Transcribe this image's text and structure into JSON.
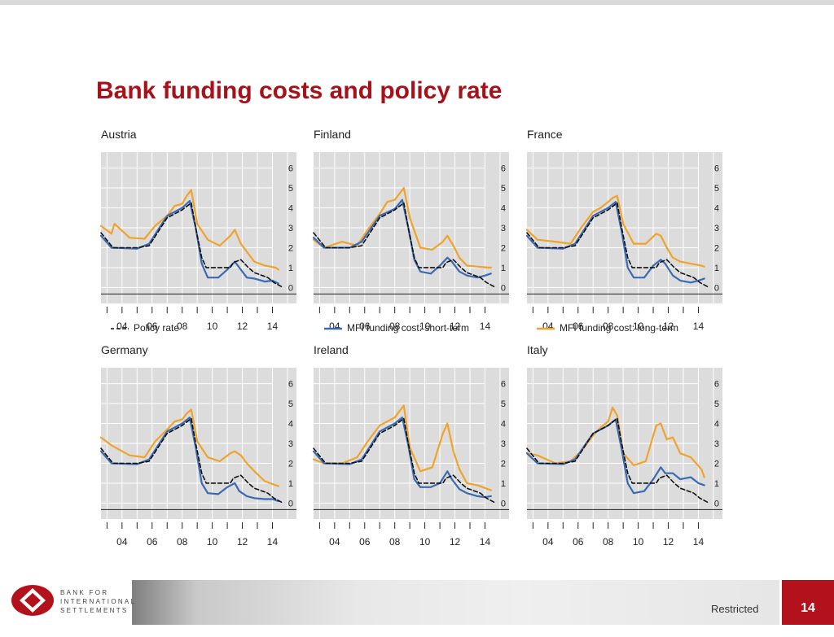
{
  "title": "Bank funding costs and policy rate",
  "footer": {
    "org_line1": "BANK FOR",
    "org_line2": "INTERNATIONAL",
    "org_line3": "SETTLEMENTS",
    "classification": "Restricted",
    "page_number": "14"
  },
  "legend": {
    "policy": "Policy rate",
    "short": "MFI funding cost: short-term",
    "long": "MFI funding cost: long-term"
  },
  "colors": {
    "policy": "#111111",
    "short": "#3a6ab4",
    "long": "#f0a32a",
    "panel_bg": "#dcdcdc",
    "title": "#a6111a"
  },
  "chart_data": [
    {
      "type": "line",
      "country": "Austria",
      "x_ticks": [
        "04",
        "06",
        "08",
        "10",
        "12",
        "14"
      ],
      "y_ticks": [
        "0",
        "1",
        "2",
        "3",
        "4",
        "5",
        "6"
      ],
      "ylim": [
        -0.8,
        6.8
      ],
      "xlim": [
        2002.6,
        2015.6
      ],
      "series": [
        {
          "name": "Policy rate",
          "x": [
            2002.6,
            2003.4,
            2005.0,
            2005.8,
            2007.0,
            2008.0,
            2008.6,
            2008.9,
            2009.3,
            2009.6,
            2010.5,
            2011.2,
            2011.4,
            2011.9,
            2012.4,
            2012.8,
            2013.7,
            2014.1,
            2014.6
          ],
          "y": [
            2.75,
            2.0,
            2.0,
            2.1,
            3.5,
            3.9,
            4.25,
            3.0,
            1.5,
            1.0,
            1.0,
            1.0,
            1.25,
            1.4,
            1.0,
            0.75,
            0.5,
            0.25,
            0.05
          ]
        },
        {
          "name": "MFI funding cost: short-term",
          "x": [
            2002.6,
            2003.3,
            2005.0,
            2005.8,
            2007.0,
            2008.0,
            2008.5,
            2008.9,
            2009.3,
            2009.7,
            2010.4,
            2011.0,
            2011.5,
            2011.8,
            2012.3,
            2012.8,
            2013.5,
            2014.0,
            2014.4
          ],
          "y": [
            2.6,
            2.0,
            1.95,
            2.2,
            3.6,
            4.0,
            4.35,
            3.0,
            1.2,
            0.5,
            0.5,
            0.9,
            1.3,
            1.0,
            0.5,
            0.45,
            0.3,
            0.35,
            0.2
          ]
        },
        {
          "name": "MFI funding cost: long-term",
          "x": [
            2002.6,
            2003.3,
            2003.5,
            2004.5,
            2005.5,
            2006.2,
            2007.0,
            2007.5,
            2008.0,
            2008.3,
            2008.6,
            2009.0,
            2009.7,
            2010.5,
            2011.2,
            2011.5,
            2011.9,
            2012.3,
            2012.8,
            2013.5,
            2014.2,
            2014.4
          ],
          "y": [
            3.1,
            2.7,
            3.2,
            2.5,
            2.45,
            3.1,
            3.6,
            4.1,
            4.2,
            4.6,
            4.9,
            3.2,
            2.4,
            2.1,
            2.6,
            2.9,
            2.2,
            1.8,
            1.3,
            1.1,
            1.0,
            0.9
          ]
        }
      ]
    },
    {
      "type": "line",
      "country": "Finland",
      "x_ticks": [
        "04",
        "06",
        "08",
        "10",
        "12",
        "14"
      ],
      "y_ticks": [
        "0",
        "1",
        "2",
        "3",
        "4",
        "5",
        "6"
      ],
      "ylim": [
        -0.8,
        6.8
      ],
      "xlim": [
        2002.6,
        2015.6
      ],
      "series": [
        {
          "name": "Policy rate",
          "x": [
            2002.6,
            2003.4,
            2005.0,
            2005.8,
            2007.0,
            2008.0,
            2008.6,
            2008.9,
            2009.3,
            2009.6,
            2010.5,
            2011.2,
            2011.4,
            2011.9,
            2012.4,
            2012.8,
            2013.7,
            2014.1,
            2014.6
          ],
          "y": [
            2.75,
            2.0,
            2.0,
            2.1,
            3.5,
            3.9,
            4.25,
            3.0,
            1.5,
            1.0,
            1.0,
            1.0,
            1.25,
            1.4,
            1.0,
            0.75,
            0.5,
            0.25,
            0.05
          ]
        },
        {
          "name": "MFI funding cost: short-term",
          "x": [
            2002.6,
            2003.3,
            2005.0,
            2005.8,
            2007.0,
            2008.0,
            2008.5,
            2008.9,
            2009.3,
            2009.7,
            2010.4,
            2011.0,
            2011.5,
            2011.8,
            2012.3,
            2012.8,
            2013.5,
            2014.0,
            2014.4
          ],
          "y": [
            2.5,
            2.0,
            2.0,
            2.3,
            3.6,
            3.95,
            4.4,
            3.0,
            1.4,
            0.8,
            0.7,
            1.1,
            1.5,
            1.3,
            0.8,
            0.6,
            0.5,
            0.6,
            0.7
          ]
        },
        {
          "name": "MFI funding cost: long-term",
          "x": [
            2002.6,
            2003.3,
            2004.5,
            2005.5,
            2006.2,
            2007.0,
            2007.5,
            2008.0,
            2008.3,
            2008.6,
            2009.0,
            2009.7,
            2010.5,
            2011.2,
            2011.5,
            2011.9,
            2012.3,
            2012.8,
            2013.5,
            2014.2,
            2014.4
          ],
          "y": [
            2.4,
            2.0,
            2.3,
            2.1,
            2.9,
            3.7,
            4.3,
            4.4,
            4.7,
            5.0,
            3.5,
            2.0,
            1.9,
            2.3,
            2.6,
            2.1,
            1.5,
            1.1,
            1.05,
            1.0,
            1.0
          ]
        }
      ]
    },
    {
      "type": "line",
      "country": "France",
      "x_ticks": [
        "04",
        "06",
        "08",
        "10",
        "12",
        "14"
      ],
      "y_ticks": [
        "0",
        "1",
        "2",
        "3",
        "4",
        "5",
        "6"
      ],
      "ylim": [
        -0.8,
        6.8
      ],
      "xlim": [
        2002.6,
        2015.6
      ],
      "series": [
        {
          "name": "Policy rate",
          "x": [
            2002.6,
            2003.4,
            2005.0,
            2005.8,
            2007.0,
            2008.0,
            2008.6,
            2008.9,
            2009.3,
            2009.6,
            2010.5,
            2011.2,
            2011.4,
            2011.9,
            2012.4,
            2012.8,
            2013.7,
            2014.1,
            2014.6
          ],
          "y": [
            2.75,
            2.0,
            2.0,
            2.1,
            3.5,
            3.9,
            4.25,
            3.0,
            1.5,
            1.0,
            1.0,
            1.0,
            1.25,
            1.4,
            1.0,
            0.75,
            0.5,
            0.25,
            0.05
          ]
        },
        {
          "name": "MFI funding cost: short-term",
          "x": [
            2002.6,
            2003.3,
            2005.0,
            2005.8,
            2007.0,
            2008.0,
            2008.5,
            2008.9,
            2009.3,
            2009.7,
            2010.4,
            2011.0,
            2011.5,
            2011.8,
            2012.3,
            2012.8,
            2013.5,
            2014.0,
            2014.4
          ],
          "y": [
            2.6,
            2.0,
            1.95,
            2.2,
            3.6,
            4.0,
            4.3,
            2.8,
            1.0,
            0.5,
            0.5,
            1.1,
            1.4,
            1.2,
            0.6,
            0.35,
            0.25,
            0.35,
            0.45
          ]
        },
        {
          "name": "MFI funding cost: long-term",
          "x": [
            2002.6,
            2003.3,
            2004.5,
            2005.5,
            2006.2,
            2007.0,
            2007.5,
            2008.0,
            2008.3,
            2008.6,
            2009.0,
            2009.7,
            2010.5,
            2011.2,
            2011.5,
            2011.9,
            2012.3,
            2012.8,
            2013.5,
            2014.2,
            2014.4
          ],
          "y": [
            2.9,
            2.4,
            2.3,
            2.2,
            3.0,
            3.8,
            4.0,
            4.3,
            4.5,
            4.6,
            3.2,
            2.2,
            2.2,
            2.7,
            2.6,
            2.0,
            1.5,
            1.3,
            1.2,
            1.1,
            1.05
          ]
        }
      ]
    },
    {
      "type": "line",
      "country": "Germany",
      "x_ticks": [
        "04",
        "06",
        "08",
        "10",
        "12",
        "14"
      ],
      "y_ticks": [
        "0",
        "1",
        "2",
        "3",
        "4",
        "5",
        "6"
      ],
      "ylim": [
        -0.8,
        6.8
      ],
      "xlim": [
        2002.6,
        2015.6
      ],
      "series": [
        {
          "name": "Policy rate",
          "x": [
            2002.6,
            2003.4,
            2005.0,
            2005.8,
            2007.0,
            2008.0,
            2008.6,
            2008.9,
            2009.3,
            2009.6,
            2010.5,
            2011.2,
            2011.4,
            2011.9,
            2012.4,
            2012.8,
            2013.7,
            2014.1,
            2014.6
          ],
          "y": [
            2.75,
            2.0,
            2.0,
            2.1,
            3.5,
            3.9,
            4.25,
            3.0,
            1.5,
            1.0,
            1.0,
            1.0,
            1.25,
            1.4,
            1.0,
            0.75,
            0.5,
            0.25,
            0.05
          ]
        },
        {
          "name": "MFI funding cost: short-term",
          "x": [
            2002.6,
            2003.3,
            2005.0,
            2005.8,
            2007.0,
            2008.0,
            2008.5,
            2008.9,
            2009.3,
            2009.7,
            2010.4,
            2011.0,
            2011.5,
            2011.8,
            2012.3,
            2012.8,
            2013.5,
            2014.0,
            2014.4
          ],
          "y": [
            2.6,
            2.0,
            1.95,
            2.2,
            3.6,
            4.0,
            4.3,
            2.8,
            1.0,
            0.5,
            0.45,
            0.8,
            1.0,
            0.6,
            0.35,
            0.25,
            0.2,
            0.2,
            0.1
          ]
        },
        {
          "name": "MFI funding cost: long-term",
          "x": [
            2002.6,
            2003.3,
            2004.5,
            2005.5,
            2006.2,
            2007.0,
            2007.5,
            2008.0,
            2008.3,
            2008.6,
            2009.0,
            2009.7,
            2010.5,
            2011.2,
            2011.5,
            2011.9,
            2012.3,
            2012.8,
            2013.5,
            2014.2,
            2014.4
          ],
          "y": [
            3.3,
            2.9,
            2.4,
            2.3,
            3.1,
            3.7,
            4.1,
            4.2,
            4.5,
            4.7,
            3.1,
            2.3,
            2.1,
            2.5,
            2.6,
            2.4,
            2.0,
            1.6,
            1.1,
            0.9,
            0.85
          ]
        }
      ]
    },
    {
      "type": "line",
      "country": "Ireland",
      "x_ticks": [
        "04",
        "06",
        "08",
        "10",
        "12",
        "14"
      ],
      "y_ticks": [
        "0",
        "1",
        "2",
        "3",
        "4",
        "5",
        "6"
      ],
      "ylim": [
        -0.8,
        6.8
      ],
      "xlim": [
        2002.6,
        2015.6
      ],
      "series": [
        {
          "name": "Policy rate",
          "x": [
            2002.6,
            2003.4,
            2005.0,
            2005.8,
            2007.0,
            2008.0,
            2008.6,
            2008.9,
            2009.3,
            2009.6,
            2010.5,
            2011.2,
            2011.4,
            2011.9,
            2012.4,
            2012.8,
            2013.7,
            2014.1,
            2014.6
          ],
          "y": [
            2.75,
            2.0,
            2.0,
            2.1,
            3.5,
            3.9,
            4.25,
            3.0,
            1.5,
            1.0,
            1.0,
            1.0,
            1.25,
            1.4,
            1.0,
            0.75,
            0.5,
            0.25,
            0.05
          ]
        },
        {
          "name": "MFI funding cost: short-term",
          "x": [
            2002.6,
            2003.3,
            2005.0,
            2005.8,
            2007.0,
            2008.0,
            2008.5,
            2008.9,
            2009.3,
            2009.7,
            2010.4,
            2011.0,
            2011.5,
            2011.8,
            2012.3,
            2012.8,
            2013.5,
            2014.0,
            2014.4
          ],
          "y": [
            2.6,
            2.0,
            1.95,
            2.2,
            3.6,
            4.0,
            4.3,
            2.9,
            1.2,
            0.8,
            0.8,
            1.0,
            1.6,
            1.2,
            0.7,
            0.5,
            0.35,
            0.3,
            0.35
          ]
        },
        {
          "name": "MFI funding cost: long-term",
          "x": [
            2002.6,
            2003.3,
            2004.5,
            2005.5,
            2006.2,
            2007.0,
            2007.5,
            2008.0,
            2008.3,
            2008.6,
            2009.0,
            2009.7,
            2010.5,
            2011.2,
            2011.5,
            2011.9,
            2012.3,
            2012.8,
            2013.5,
            2014.2,
            2014.4
          ],
          "y": [
            2.2,
            2.0,
            2.0,
            2.3,
            3.1,
            3.9,
            4.1,
            4.3,
            4.6,
            4.9,
            2.8,
            1.6,
            1.8,
            3.5,
            4.0,
            2.6,
            1.7,
            1.0,
            0.9,
            0.7,
            0.65
          ]
        }
      ]
    },
    {
      "type": "line",
      "country": "Italy",
      "x_ticks": [
        "04",
        "06",
        "08",
        "10",
        "12",
        "14"
      ],
      "y_ticks": [
        "0",
        "1",
        "2",
        "3",
        "4",
        "5",
        "6"
      ],
      "ylim": [
        -0.8,
        6.8
      ],
      "xlim": [
        2002.6,
        2015.6
      ],
      "series": [
        {
          "name": "Policy rate",
          "x": [
            2002.6,
            2003.4,
            2005.0,
            2005.8,
            2007.0,
            2008.0,
            2008.6,
            2008.9,
            2009.3,
            2009.6,
            2010.5,
            2011.2,
            2011.4,
            2011.9,
            2012.4,
            2012.8,
            2013.7,
            2014.1,
            2014.6
          ],
          "y": [
            2.75,
            2.0,
            2.0,
            2.1,
            3.5,
            3.9,
            4.25,
            3.0,
            1.5,
            1.0,
            1.0,
            1.0,
            1.25,
            1.4,
            1.0,
            0.75,
            0.5,
            0.25,
            0.05
          ]
        },
        {
          "name": "MFI funding cost: short-term",
          "x": [
            2002.6,
            2003.3,
            2005.0,
            2005.8,
            2007.0,
            2008.0,
            2008.5,
            2008.9,
            2009.3,
            2009.7,
            2010.4,
            2011.0,
            2011.5,
            2011.8,
            2012.3,
            2012.8,
            2013.5,
            2014.0,
            2014.4
          ],
          "y": [
            2.5,
            2.0,
            1.95,
            2.2,
            3.5,
            3.9,
            4.2,
            2.7,
            1.0,
            0.5,
            0.6,
            1.2,
            1.8,
            1.5,
            1.5,
            1.2,
            1.3,
            1.0,
            0.9
          ]
        },
        {
          "name": "MFI funding cost: long-term",
          "x": [
            2002.6,
            2003.3,
            2004.5,
            2005.5,
            2006.2,
            2007.0,
            2007.5,
            2008.0,
            2008.3,
            2008.6,
            2009.0,
            2009.7,
            2010.5,
            2011.2,
            2011.5,
            2011.9,
            2012.3,
            2012.8,
            2013.5,
            2014.2,
            2014.4
          ],
          "y": [
            2.5,
            2.4,
            2.0,
            2.1,
            2.6,
            3.4,
            3.8,
            4.1,
            4.8,
            4.4,
            2.5,
            1.9,
            2.1,
            3.9,
            4.0,
            3.2,
            3.3,
            2.5,
            2.3,
            1.7,
            1.3
          ]
        }
      ]
    }
  ]
}
